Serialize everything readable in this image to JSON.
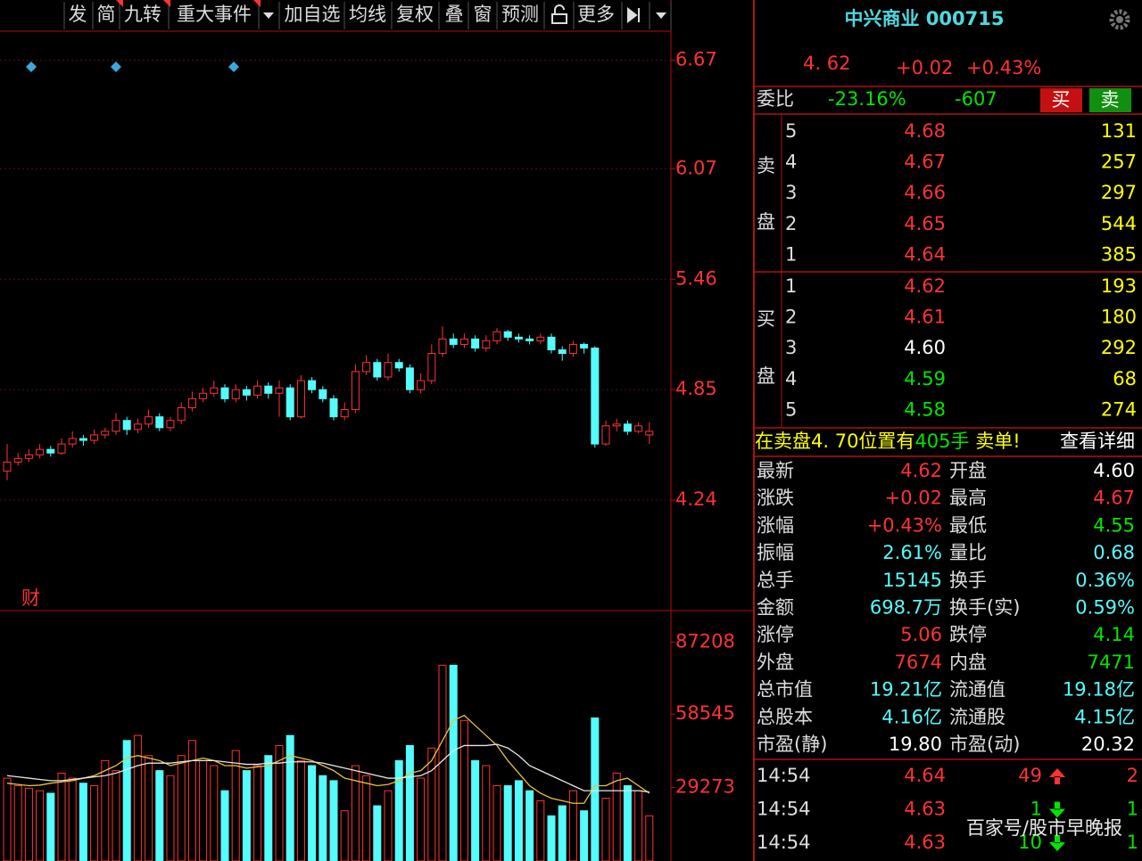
{
  "toolbar": {
    "items": [
      "发",
      "简",
      "九转",
      "重大事件",
      "加自选",
      "均线",
      "复权",
      "叠",
      "窗",
      "预测",
      "更多"
    ]
  },
  "chart_data": [
    {
      "type": "candlestick",
      "marker_label": "财",
      "ylim": [
        3.63,
        6.83
      ],
      "yticks": [
        {
          "value": 6.67,
          "label": "6.67"
        },
        {
          "value": 6.07,
          "label": "6.07"
        },
        {
          "value": 5.46,
          "label": "5.46"
        },
        {
          "value": 4.85,
          "label": "4.85"
        },
        {
          "value": 4.24,
          "label": "4.24"
        }
      ],
      "up_color": "#ff3232",
      "down_color": "#54fcfc",
      "grid": true,
      "candles": [
        [
          4.4,
          4.55,
          4.35,
          4.45
        ],
        [
          4.45,
          4.5,
          4.43,
          4.47
        ],
        [
          4.47,
          4.52,
          4.45,
          4.49
        ],
        [
          4.49,
          4.55,
          4.47,
          4.52
        ],
        [
          4.52,
          4.54,
          4.48,
          4.5
        ],
        [
          4.5,
          4.58,
          4.49,
          4.55
        ],
        [
          4.55,
          4.62,
          4.53,
          4.58
        ],
        [
          4.58,
          4.6,
          4.54,
          4.57
        ],
        [
          4.57,
          4.63,
          4.55,
          4.6
        ],
        [
          4.6,
          4.64,
          4.58,
          4.62
        ],
        [
          4.62,
          4.72,
          4.6,
          4.68
        ],
        [
          4.68,
          4.7,
          4.6,
          4.63
        ],
        [
          4.63,
          4.69,
          4.61,
          4.66
        ],
        [
          4.66,
          4.74,
          4.64,
          4.7
        ],
        [
          4.7,
          4.72,
          4.62,
          4.64
        ],
        [
          4.64,
          4.7,
          4.62,
          4.68
        ],
        [
          4.68,
          4.78,
          4.66,
          4.75
        ],
        [
          4.75,
          4.84,
          4.73,
          4.8
        ],
        [
          4.8,
          4.86,
          4.78,
          4.83
        ],
        [
          4.83,
          4.9,
          4.81,
          4.86
        ],
        [
          4.86,
          4.88,
          4.78,
          4.8
        ],
        [
          4.8,
          4.88,
          4.78,
          4.85
        ],
        [
          4.85,
          4.87,
          4.79,
          4.82
        ],
        [
          4.82,
          4.9,
          4.8,
          4.87
        ],
        [
          4.87,
          4.89,
          4.8,
          4.83
        ],
        [
          4.83,
          4.9,
          4.7,
          4.86
        ],
        [
          4.86,
          4.88,
          4.68,
          4.7
        ],
        [
          4.7,
          4.93,
          4.69,
          4.9
        ],
        [
          4.9,
          4.92,
          4.83,
          4.85
        ],
        [
          4.85,
          4.87,
          4.78,
          4.8
        ],
        [
          4.8,
          4.82,
          4.68,
          4.7
        ],
        [
          4.7,
          4.78,
          4.68,
          4.74
        ],
        [
          4.74,
          4.99,
          4.72,
          4.95
        ],
        [
          4.95,
          5.04,
          4.93,
          5.0
        ],
        [
          5.0,
          5.02,
          4.9,
          4.92
        ],
        [
          4.92,
          5.05,
          4.9,
          5.0
        ],
        [
          5.0,
          5.02,
          4.95,
          4.97
        ],
        [
          4.97,
          4.99,
          4.83,
          4.85
        ],
        [
          4.85,
          4.94,
          4.83,
          4.9
        ],
        [
          4.9,
          5.1,
          4.88,
          5.05
        ],
        [
          5.05,
          5.2,
          5.03,
          5.13
        ],
        [
          5.13,
          5.16,
          5.08,
          5.1
        ],
        [
          5.1,
          5.16,
          5.08,
          5.13
        ],
        [
          5.13,
          5.15,
          5.06,
          5.08
        ],
        [
          5.08,
          5.15,
          5.06,
          5.12
        ],
        [
          5.12,
          5.19,
          5.1,
          5.17
        ],
        [
          5.17,
          5.18,
          5.12,
          5.14
        ],
        [
          5.14,
          5.16,
          5.11,
          5.13
        ],
        [
          5.13,
          5.15,
          5.1,
          5.12
        ],
        [
          5.12,
          5.16,
          5.1,
          5.14
        ],
        [
          5.14,
          5.16,
          5.05,
          5.07
        ],
        [
          5.07,
          5.09,
          5.01,
          5.05
        ],
        [
          5.05,
          5.12,
          5.03,
          5.1
        ],
        [
          5.1,
          5.11,
          5.05,
          5.08
        ],
        [
          5.08,
          5.09,
          4.53,
          4.55
        ],
        [
          4.55,
          4.68,
          4.54,
          4.65
        ],
        [
          4.65,
          4.69,
          4.62,
          4.66
        ],
        [
          4.66,
          4.68,
          4.6,
          4.62
        ],
        [
          4.62,
          4.67,
          4.61,
          4.65
        ],
        [
          4.6,
          4.67,
          4.55,
          4.62
        ]
      ]
    },
    {
      "type": "volume",
      "ylim": [
        0,
        98000
      ],
      "yticks": [
        {
          "value": 87208,
          "label": "87208"
        },
        {
          "value": 58545,
          "label": "58545"
        },
        {
          "value": 29273,
          "label": "29273"
        }
      ],
      "values": [
        33000,
        30000,
        29000,
        28000,
        27000,
        35000,
        33000,
        31000,
        30000,
        40000,
        36000,
        48000,
        50000,
        42000,
        36000,
        34000,
        42000,
        48000,
        40000,
        38000,
        28000,
        44000,
        36000,
        38000,
        42000,
        46000,
        50000,
        40000,
        38000,
        34000,
        32000,
        20000,
        38000,
        34000,
        22000,
        28000,
        40000,
        46000,
        33000,
        45000,
        78000,
        78000,
        56000,
        40000,
        38000,
        30000,
        30000,
        32000,
        28000,
        24000,
        18000,
        22000,
        28000,
        20000,
        57000,
        25000,
        35000,
        30000,
        28000,
        18000
      ],
      "series": [
        {
          "color": "#e8c33a",
          "values": [
            31000,
            30500,
            30000,
            30200,
            31000,
            31500,
            32000,
            33000,
            34000,
            36000,
            38000,
            41000,
            42000,
            41000,
            40000,
            38000,
            39000,
            40000,
            41000,
            40000,
            38000,
            38000,
            37000,
            37500,
            38000,
            40000,
            42000,
            41000,
            40000,
            38000,
            36000,
            33000,
            32000,
            31000,
            30000,
            30500,
            32000,
            35000,
            36000,
            40000,
            48000,
            56000,
            58000,
            54000,
            50000,
            46000,
            40000,
            35000,
            30000,
            27000,
            25000,
            24000,
            23000,
            23000,
            30000,
            30000,
            32000,
            33000,
            30000,
            27000
          ]
        },
        {
          "color": "#e6e6e6",
          "values": [
            34000,
            33500,
            33000,
            32500,
            32000,
            32000,
            32500,
            33000,
            33500,
            34000,
            35000,
            36500,
            38000,
            39000,
            39000,
            39000,
            39500,
            40000,
            40000,
            40000,
            39500,
            39000,
            38500,
            38500,
            39000,
            39000,
            39500,
            39500,
            39500,
            39000,
            38000,
            37000,
            36000,
            35000,
            34000,
            33000,
            33000,
            33500,
            34000,
            36000,
            40000,
            44000,
            46000,
            46000,
            46000,
            46500,
            45000,
            42000,
            38000,
            36000,
            34000,
            32000,
            30000,
            28000,
            28000,
            28000,
            28000,
            28000,
            28000,
            27500
          ]
        }
      ]
    }
  ],
  "quote": {
    "title": "中兴商业 000715",
    "price": "4. 62",
    "change": "+0.02",
    "change_pct": "+0.43%",
    "ratio_label": "委比",
    "ratio_pct": "-23.16%",
    "ratio_diff": "-607",
    "buy_button": "买",
    "sell_button": "卖"
  },
  "order_book": {
    "sell_label": [
      "卖",
      "盘"
    ],
    "buy_label": [
      "买",
      "盘"
    ],
    "sell": [
      [
        "5",
        "4.68",
        "131"
      ],
      [
        "4",
        "4.67",
        "257"
      ],
      [
        "3",
        "4.66",
        "297"
      ],
      [
        "2",
        "4.65",
        "544"
      ],
      [
        "1",
        "4.64",
        "385"
      ]
    ],
    "buy": [
      [
        "1",
        "4.62",
        "193"
      ],
      [
        "2",
        "4.61",
        "180"
      ],
      [
        "3",
        "4.60",
        "292"
      ],
      [
        "4",
        "4.59",
        "68"
      ],
      [
        "5",
        "4.58",
        "274"
      ]
    ]
  },
  "notice": {
    "parts": [
      "在卖盘4. 70位置有",
      "405手",
      " 卖单!"
    ],
    "link": "查看详细"
  },
  "stats": [
    [
      "最新",
      "4.62",
      "开盘",
      "4.60"
    ],
    [
      "涨跌",
      "+0.02",
      "最高",
      "4.67"
    ],
    [
      "涨幅",
      "+0.43%",
      "最低",
      "4.55"
    ],
    [
      "振幅",
      "2.61%",
      "量比",
      "0.68"
    ],
    [
      "总手",
      "15145",
      "换手",
      "0.36%"
    ],
    [
      "金额",
      "698.7万",
      "换手(实)",
      "0.59%"
    ],
    [
      "涨停",
      "5.06",
      "跌停",
      "4.14"
    ],
    [
      "外盘",
      "7674",
      "内盘",
      "7471"
    ],
    [
      "总市值",
      "19.21亿",
      "流通值",
      "19.18亿"
    ],
    [
      "总股本",
      "4.16亿",
      "流通股",
      "4.15亿"
    ],
    [
      "市盈(静)",
      "19.80",
      "市盈(动)",
      "20.32"
    ]
  ],
  "ticks": [
    [
      "14:54",
      "4.64",
      "49",
      "2"
    ],
    [
      "14:54",
      "4.63",
      "1",
      "1"
    ],
    [
      "14:54",
      "4.63",
      "10",
      "1"
    ]
  ],
  "watermark": "百家号/股市早晚报"
}
